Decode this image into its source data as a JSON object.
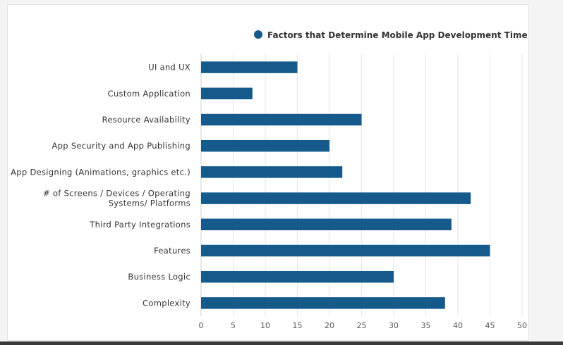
{
  "chart_data": {
    "type": "bar",
    "orientation": "horizontal",
    "title": "",
    "xlabel": "",
    "ylabel": "",
    "xlim": [
      0,
      50
    ],
    "x_ticks": [
      "0",
      "5",
      "10",
      "15",
      "20",
      "25",
      "30",
      "35",
      "40",
      "45",
      "50"
    ],
    "grid": true,
    "legend_position": "top-right",
    "bar_color": "#155a8a",
    "categories": [
      "UI and UX",
      "Custom Application",
      "Resource Availability",
      "App Security and App Publishing",
      "App Designing (Animations, graphics etc.)",
      "# of Screens / Devices / Operating Systems/ Platforms",
      "Third Party Integrations",
      "Features",
      "Business Logic",
      "Complexity"
    ],
    "category_lines": [
      [
        "UI and UX"
      ],
      [
        "Custom Application"
      ],
      [
        "Resource Availability"
      ],
      [
        "App Security and App Publishing"
      ],
      [
        "App Designing (Animations, graphics etc.)"
      ],
      [
        "# of Screens / Devices / Operating",
        "Systems/ Platforms"
      ],
      [
        "Third Party Integrations"
      ],
      [
        "Features"
      ],
      [
        "Business Logic"
      ],
      [
        "Complexity"
      ]
    ],
    "series": [
      {
        "name": "Factors that Determine Mobile App Development Time",
        "values": [
          15,
          8,
          25,
          20,
          22,
          42,
          39,
          45,
          30,
          38
        ]
      }
    ]
  }
}
